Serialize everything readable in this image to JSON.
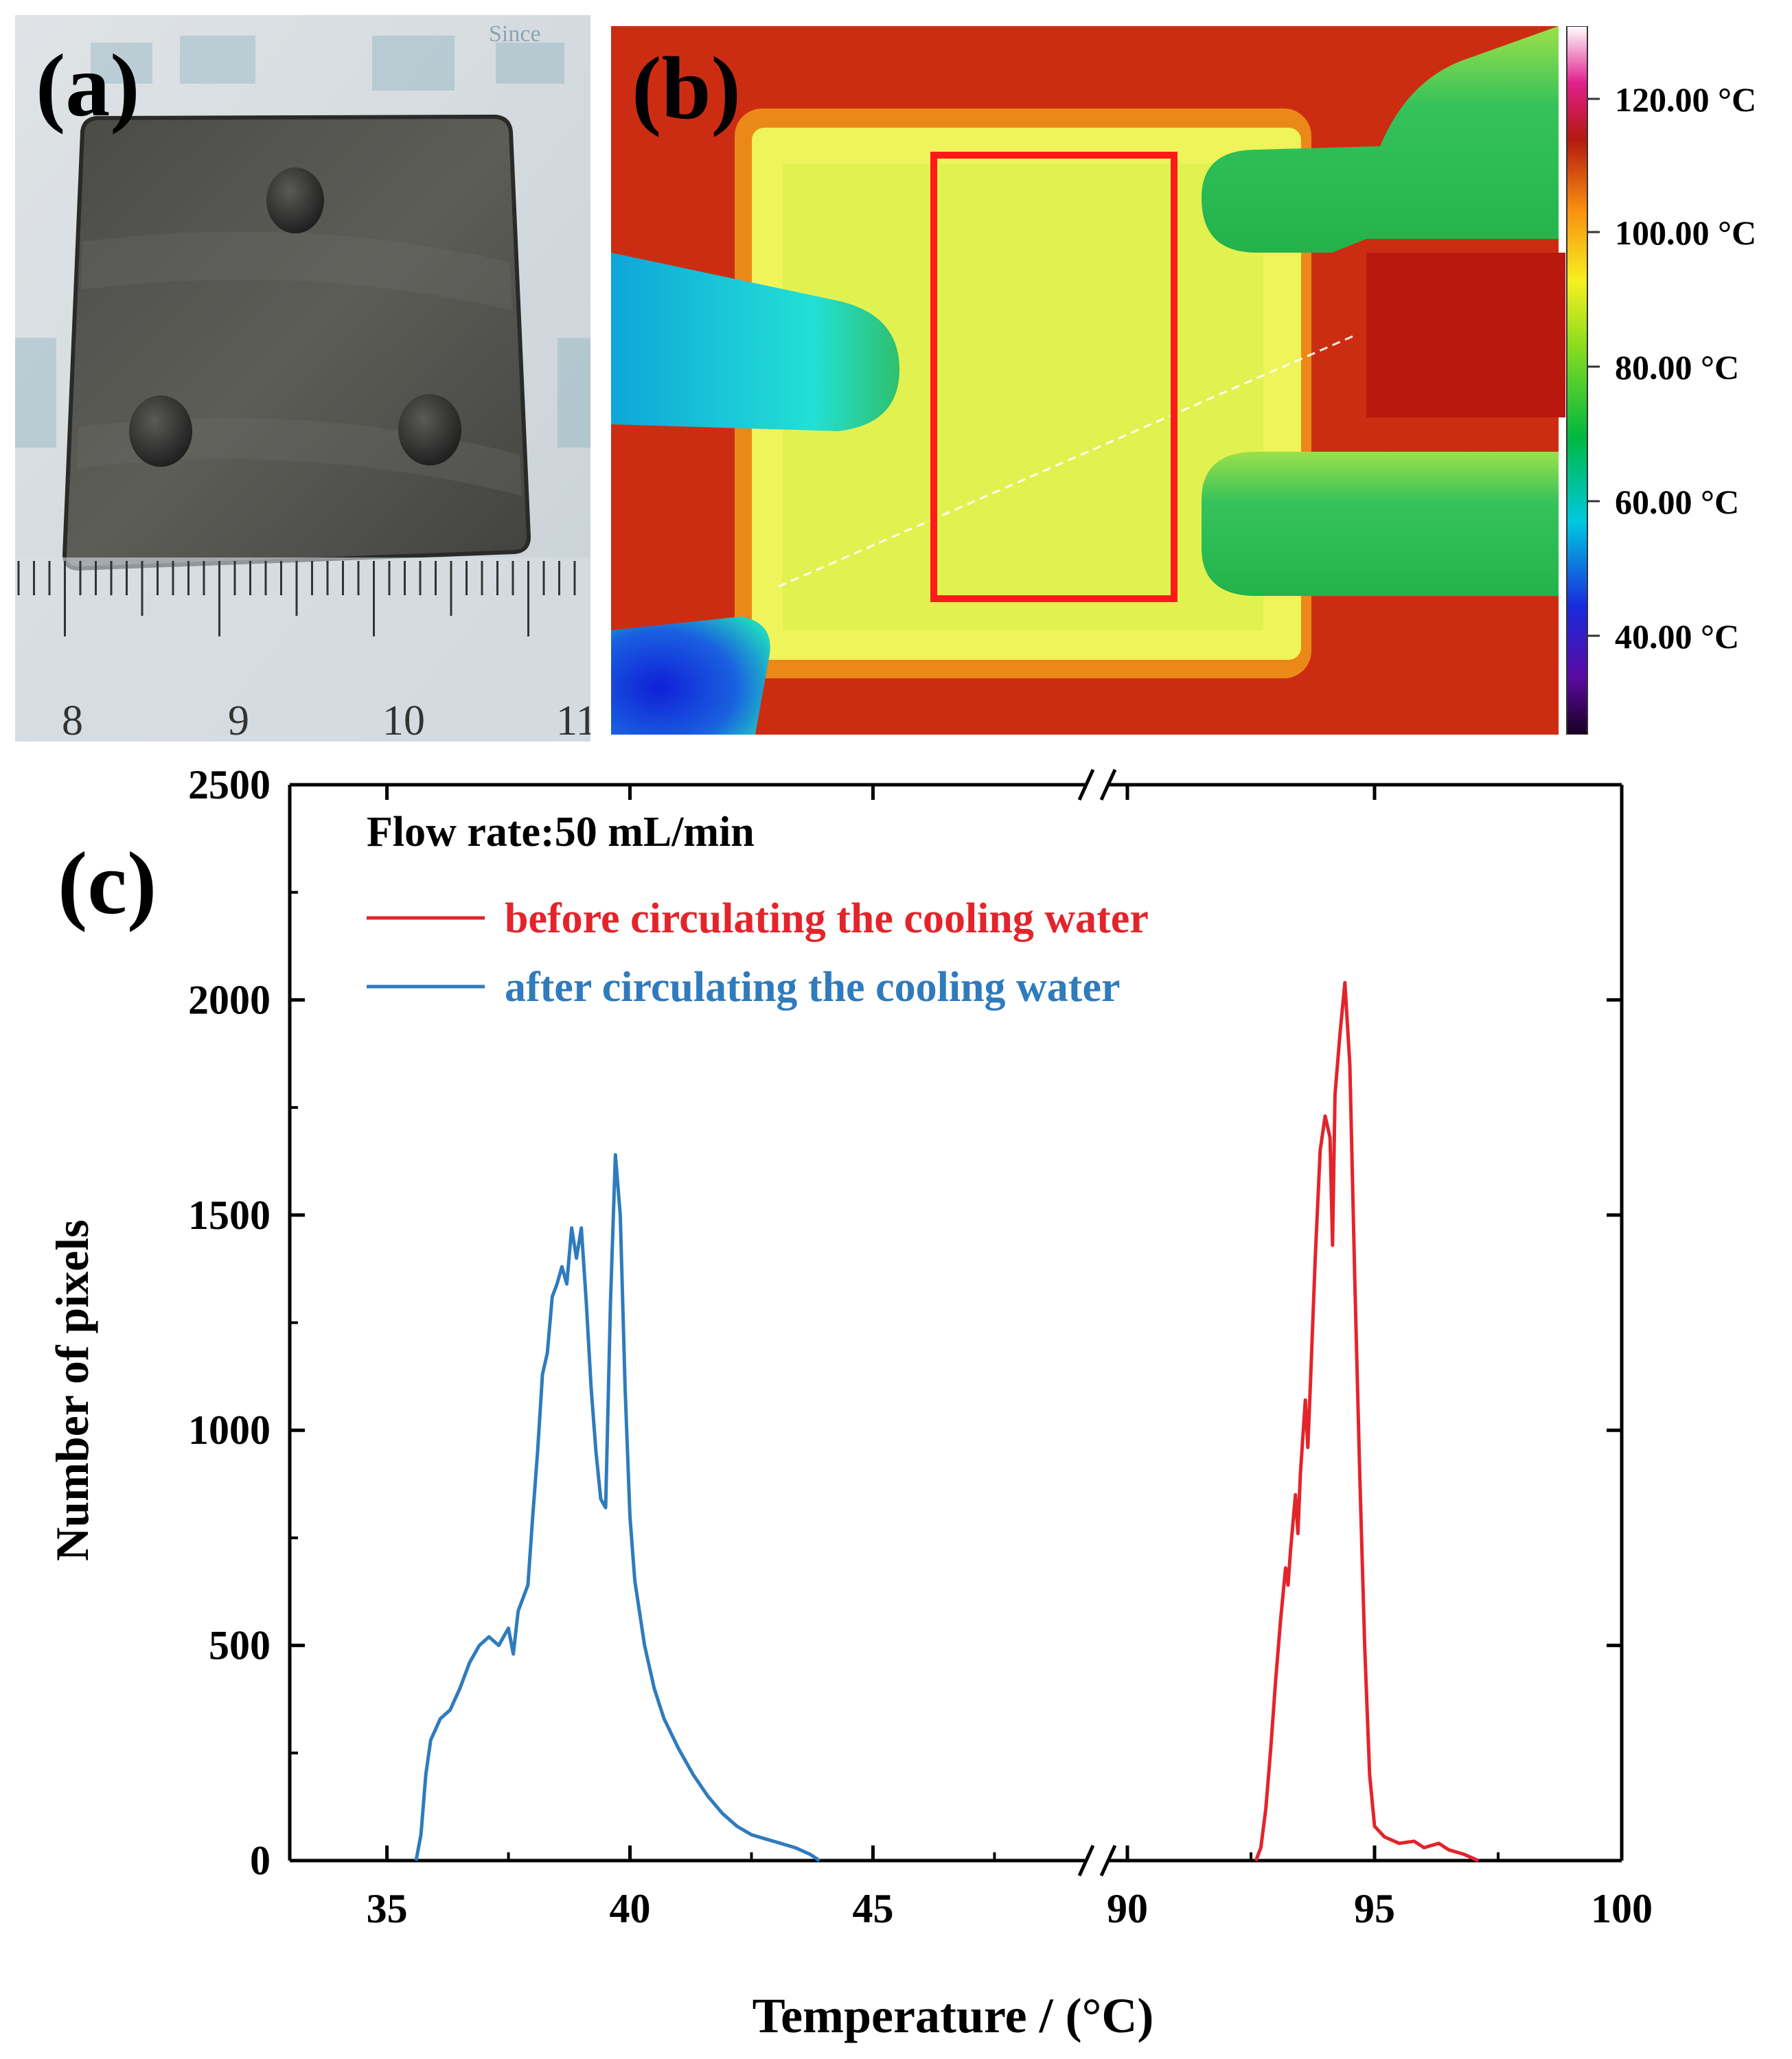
{
  "panels": {
    "a": {
      "label": "(a)",
      "ruler_numbers": [
        "8",
        "9",
        "10",
        "11"
      ],
      "bg_text": "Since"
    },
    "b": {
      "label": "(b)",
      "colorbar_ticks": [
        "120.00 °C",
        "100.00 °C",
        "80.00 °C",
        "60.00 °C",
        "40.00 °C"
      ]
    },
    "c": {
      "label": "(c)"
    }
  },
  "colors": {
    "before": "#e3242b",
    "after": "#2f7bbd",
    "roi": "#ff1a1a"
  },
  "chart_data": {
    "type": "line",
    "annotation": "Flow rate:50 mL/min",
    "xlabel": "Temperature / (°C)",
    "ylabel": "Number of pixels",
    "ylim": [
      0,
      2500
    ],
    "yticks": [
      0,
      500,
      1000,
      1500,
      2000,
      2500
    ],
    "x_segments": [
      {
        "range": [
          33,
          49.5
        ],
        "ticks": [
          35,
          40,
          45
        ]
      },
      {
        "range": [
          89.5,
          100
        ],
        "ticks": [
          90,
          95,
          100
        ]
      }
    ],
    "legend": {
      "placement": "top-left"
    },
    "series": [
      {
        "name": "before circulating the cooling water",
        "color_key": "before",
        "segment": 1,
        "points": [
          [
            92.6,
            0
          ],
          [
            92.7,
            30
          ],
          [
            92.8,
            120
          ],
          [
            92.9,
            260
          ],
          [
            93.0,
            420
          ],
          [
            93.1,
            560
          ],
          [
            93.2,
            680
          ],
          [
            93.25,
            640
          ],
          [
            93.3,
            720
          ],
          [
            93.4,
            850
          ],
          [
            93.45,
            760
          ],
          [
            93.5,
            900
          ],
          [
            93.6,
            1070
          ],
          [
            93.65,
            960
          ],
          [
            93.7,
            1100
          ],
          [
            93.8,
            1400
          ],
          [
            93.9,
            1650
          ],
          [
            94.0,
            1730
          ],
          [
            94.1,
            1680
          ],
          [
            94.15,
            1430
          ],
          [
            94.2,
            1780
          ],
          [
            94.3,
            1920
          ],
          [
            94.4,
            2040
          ],
          [
            94.5,
            1850
          ],
          [
            94.6,
            1350
          ],
          [
            94.7,
            900
          ],
          [
            94.8,
            500
          ],
          [
            94.9,
            200
          ],
          [
            95.0,
            80
          ],
          [
            95.2,
            55
          ],
          [
            95.5,
            40
          ],
          [
            95.8,
            45
          ],
          [
            96.0,
            30
          ],
          [
            96.3,
            40
          ],
          [
            96.5,
            25
          ],
          [
            96.8,
            15
          ],
          [
            97.0,
            5
          ],
          [
            97.1,
            0
          ]
        ]
      },
      {
        "name": "after circulating the cooling water",
        "color_key": "after",
        "segment": 0,
        "points": [
          [
            35.6,
            0
          ],
          [
            35.7,
            60
          ],
          [
            35.8,
            200
          ],
          [
            35.9,
            280
          ],
          [
            36.1,
            330
          ],
          [
            36.3,
            350
          ],
          [
            36.5,
            400
          ],
          [
            36.7,
            460
          ],
          [
            36.9,
            500
          ],
          [
            37.1,
            520
          ],
          [
            37.3,
            500
          ],
          [
            37.5,
            540
          ],
          [
            37.6,
            480
          ],
          [
            37.7,
            580
          ],
          [
            37.9,
            640
          ],
          [
            38.0,
            800
          ],
          [
            38.1,
            950
          ],
          [
            38.2,
            1130
          ],
          [
            38.3,
            1180
          ],
          [
            38.4,
            1310
          ],
          [
            38.5,
            1340
          ],
          [
            38.6,
            1380
          ],
          [
            38.7,
            1340
          ],
          [
            38.8,
            1470
          ],
          [
            38.9,
            1400
          ],
          [
            39.0,
            1470
          ],
          [
            39.1,
            1300
          ],
          [
            39.2,
            1100
          ],
          [
            39.3,
            950
          ],
          [
            39.4,
            840
          ],
          [
            39.5,
            820
          ],
          [
            39.6,
            1300
          ],
          [
            39.7,
            1640
          ],
          [
            39.8,
            1500
          ],
          [
            39.9,
            1100
          ],
          [
            40.0,
            800
          ],
          [
            40.1,
            650
          ],
          [
            40.3,
            500
          ],
          [
            40.5,
            400
          ],
          [
            40.7,
            330
          ],
          [
            41.0,
            260
          ],
          [
            41.3,
            200
          ],
          [
            41.6,
            150
          ],
          [
            41.9,
            110
          ],
          [
            42.2,
            80
          ],
          [
            42.5,
            60
          ],
          [
            42.8,
            50
          ],
          [
            43.1,
            40
          ],
          [
            43.4,
            30
          ],
          [
            43.7,
            15
          ],
          [
            43.9,
            0
          ]
        ]
      }
    ]
  }
}
